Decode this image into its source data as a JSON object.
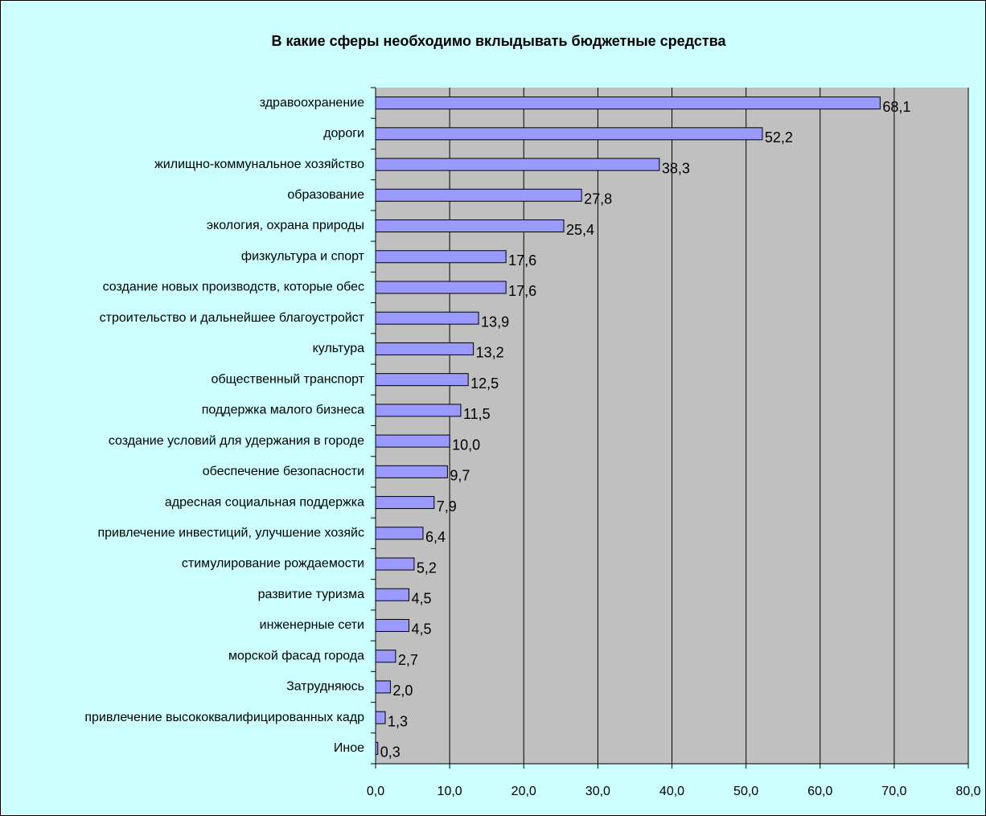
{
  "chart_data": {
    "type": "bar",
    "orientation": "horizontal",
    "title": "В какие сферы необходимо вклыдывать бюджетные средства",
    "categories": [
      "здравоохранение",
      "дороги",
      "жилищно-коммунальное хозяйство",
      "образование",
      "экология, охрана природы",
      "физкультура и спорт",
      "создание новых производств, которые обес",
      "строительство и дальнейшее благоустройст",
      "культура",
      "общественный транспорт",
      "поддержка малого бизнеса",
      "создание условий для удержания в городе",
      "обеспечение безопасности",
      "адресная социальная поддержка",
      "привлечение инвестиций, улучшение хозяйс",
      "стимулирование рождаемости",
      "развитие туризма",
      "инженерные сети",
      "морской фасад города",
      "Затрудняюсь",
      "привлечение высококвалифицированных кадр",
      "Иное"
    ],
    "values": [
      68.1,
      52.2,
      38.3,
      27.8,
      25.4,
      17.6,
      17.6,
      13.9,
      13.2,
      12.5,
      11.5,
      10.0,
      9.7,
      7.9,
      6.4,
      5.2,
      4.5,
      4.5,
      2.7,
      2.0,
      1.3,
      0.3
    ],
    "value_labels": [
      "68,1",
      "52,2",
      "38,3",
      "27,8",
      "25,4",
      "17,6",
      "17,6",
      "13,9",
      "13,2",
      "12,5",
      "11,5",
      "10,0",
      "9,7",
      "7,9",
      "6,4",
      "5,2",
      "4,5",
      "4,5",
      "2,7",
      "2,0",
      "1,3",
      "0,3"
    ],
    "color": "#9999ff",
    "xlim": [
      0,
      80
    ],
    "xticks": [
      {
        "value": 0,
        "label": "0,0"
      },
      {
        "value": 10,
        "label": "10,0"
      },
      {
        "value": 20,
        "label": "20,0"
      },
      {
        "value": 30,
        "label": "30,0"
      },
      {
        "value": 40,
        "label": "40,0"
      },
      {
        "value": 50,
        "label": "50,0"
      },
      {
        "value": 60,
        "label": "60,0"
      },
      {
        "value": 70,
        "label": "70,0"
      },
      {
        "value": 80,
        "label": "80,0"
      }
    ],
    "grid": true
  }
}
